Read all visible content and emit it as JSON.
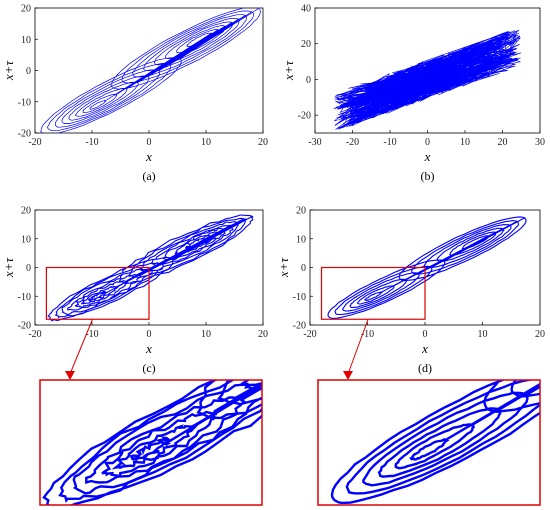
{
  "chart_data": [
    {
      "panel": "a",
      "caption": "(a)",
      "type": "line",
      "xlabel": "x",
      "ylabel": "x+τ",
      "xlim": [
        -20,
        20
      ],
      "ylim": [
        -20,
        20
      ],
      "xticks": [
        "-20",
        "-10",
        "0",
        "10",
        "20"
      ],
      "yticks": [
        "20",
        "10",
        "0",
        "-10",
        "-20"
      ],
      "color": "#0000ff",
      "attractor": {
        "loops": 16,
        "r_min": 2,
        "r_max": 19,
        "wings": [
          [
            -9,
            -11
          ],
          [
            9,
            10
          ]
        ]
      }
    },
    {
      "panel": "b",
      "caption": "(b)",
      "type": "scatter",
      "xlabel": "x",
      "ylabel": "x+τ",
      "xlim": [
        -30,
        30
      ],
      "ylim": [
        -30,
        40
      ],
      "xticks": [
        "-30",
        "-20",
        "-10",
        "0",
        "10",
        "20",
        "30"
      ],
      "yticks": [
        "40",
        "20",
        "0",
        "-20"
      ],
      "color": "#0000ff",
      "cloud": {
        "center": [
          0,
          0
        ],
        "x_range": [
          -25,
          25
        ],
        "y_range": [
          -22,
          28
        ],
        "trend": 0.75
      }
    },
    {
      "panel": "c",
      "caption": "(c)",
      "type": "line",
      "xlabel": "x",
      "ylabel": "x+τ",
      "xlim": [
        -20,
        20
      ],
      "ylim": [
        -20,
        20
      ],
      "xticks": [
        "-20",
        "-10",
        "0",
        "10",
        "20"
      ],
      "yticks": [
        "20",
        "10",
        "0",
        "-10",
        "-20"
      ],
      "color": "#0000ff",
      "attractor": {
        "loops": 14,
        "r_min": 2,
        "r_max": 17,
        "wings": [
          [
            -9,
            -10
          ],
          [
            9,
            9
          ]
        ]
      },
      "zoom_box": {
        "x": [
          -18,
          0
        ],
        "y": [
          -18,
          0
        ],
        "color": "#e00000"
      }
    },
    {
      "panel": "d",
      "caption": "(d)",
      "type": "line",
      "xlabel": "x",
      "ylabel": "x+τ",
      "xlim": [
        -20,
        20
      ],
      "ylim": [
        -20,
        20
      ],
      "xticks": [
        "-20",
        "-10",
        "0",
        "10",
        "20"
      ],
      "yticks": [
        "20",
        "10",
        "0",
        "-10",
        "-20"
      ],
      "color": "#0000ff",
      "attractor": {
        "loops": 12,
        "r_min": 2,
        "r_max": 16,
        "wings": [
          [
            -9,
            -10
          ],
          [
            9,
            9
          ]
        ]
      },
      "zoom_box": {
        "x": [
          -18,
          0
        ],
        "y": [
          -18,
          0
        ],
        "color": "#e00000"
      }
    }
  ]
}
